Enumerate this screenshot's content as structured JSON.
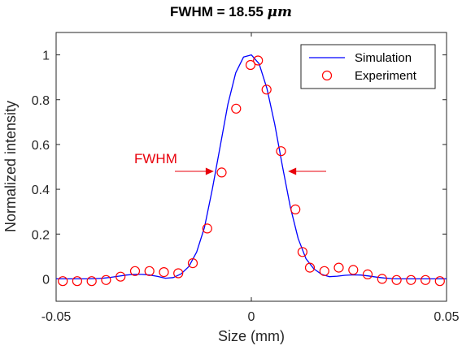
{
  "chart_data": {
    "type": "line",
    "title_main": "FWHM = 18.55 ",
    "title_unit": "μm",
    "xlabel": "Size (mm)",
    "ylabel": "Normalized intensity",
    "xlim": [
      -0.05,
      0.05
    ],
    "ylim": [
      -0.1,
      1.1
    ],
    "xticks": [
      -0.05,
      0,
      0.05
    ],
    "xtick_labels": [
      "-0.05",
      "0",
      "0.05"
    ],
    "yticks": [
      0,
      0.2,
      0.4,
      0.6,
      0.8,
      1
    ],
    "ytick_labels": [
      "0",
      "0.2",
      "0.4",
      "0.6",
      "0.8",
      "1"
    ],
    "grid": false,
    "legend_position": "top-right",
    "annotation": {
      "text": "FWHM",
      "color": "#e8000b",
      "y": 0.48
    },
    "series": [
      {
        "name": "Simulation",
        "style": "line",
        "color": "#0000ff",
        "x": [
          -0.0505,
          -0.048,
          -0.046,
          -0.044,
          -0.042,
          -0.04,
          -0.038,
          -0.036,
          -0.034,
          -0.032,
          -0.03,
          -0.028,
          -0.026,
          -0.024,
          -0.022,
          -0.02,
          -0.018,
          -0.016,
          -0.014,
          -0.012,
          -0.01,
          -0.008,
          -0.006,
          -0.004,
          -0.002,
          0.0,
          0.002,
          0.004,
          0.006,
          0.008,
          0.01,
          0.012,
          0.014,
          0.016,
          0.018,
          0.02,
          0.022,
          0.024,
          0.026,
          0.028,
          0.03,
          0.032,
          0.034,
          0.036,
          0.038,
          0.04,
          0.042,
          0.044,
          0.046,
          0.048,
          0.0505
        ],
        "y": [
          0.0,
          0.0,
          0.0,
          0.0,
          0.0,
          0.001,
          0.003,
          0.007,
          0.012,
          0.017,
          0.02,
          0.02,
          0.017,
          0.011,
          0.003,
          0.006,
          0.022,
          0.055,
          0.12,
          0.23,
          0.4,
          0.59,
          0.78,
          0.92,
          0.99,
          1.0,
          0.96,
          0.85,
          0.69,
          0.5,
          0.32,
          0.18,
          0.09,
          0.045,
          0.02,
          0.01,
          0.012,
          0.016,
          0.018,
          0.017,
          0.013,
          0.008,
          0.004,
          0.001,
          0.0,
          0.0,
          0.0,
          0.0,
          0.0,
          0.0,
          0.0
        ]
      },
      {
        "name": "Experiment",
        "style": "marker",
        "color": "#ff0000",
        "x": [
          -0.0483,
          -0.0446,
          -0.0409,
          -0.0372,
          -0.0335,
          -0.0298,
          -0.0261,
          -0.0224,
          -0.0187,
          -0.015,
          -0.0113,
          -0.0076,
          -0.0039,
          -0.0002,
          0.0017,
          0.0039,
          0.0076,
          0.0113,
          0.0131,
          0.015,
          0.0187,
          0.0224,
          0.0261,
          0.0298,
          0.0335,
          0.0372,
          0.0409,
          0.0446,
          0.0483
        ],
        "y": [
          -0.01,
          -0.01,
          -0.01,
          -0.005,
          0.01,
          0.035,
          0.035,
          0.03,
          0.025,
          0.07,
          0.225,
          0.475,
          0.76,
          0.955,
          0.975,
          0.845,
          0.57,
          0.31,
          0.12,
          0.05,
          0.035,
          0.05,
          0.04,
          0.02,
          0.0,
          -0.005,
          -0.005,
          -0.005,
          -0.01
        ]
      }
    ]
  }
}
